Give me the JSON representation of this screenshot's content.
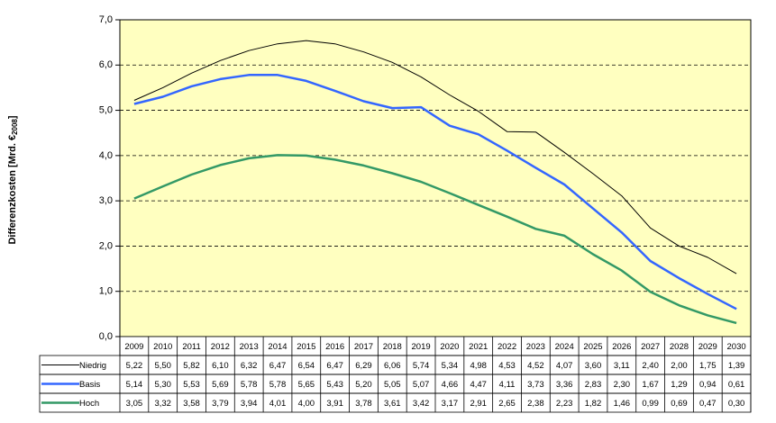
{
  "chart_data": {
    "type": "line",
    "ylabel": "Differenzkosten [Mrd. €",
    "ylabel_sub": "2008",
    "ylabel_end": "]",
    "categories": [
      "2009",
      "2010",
      "2011",
      "2012",
      "2013",
      "2014",
      "2015",
      "2016",
      "2017",
      "2018",
      "2019",
      "2020",
      "2021",
      "2022",
      "2023",
      "2024",
      "2025",
      "2026",
      "2027",
      "2028",
      "2029",
      "2030"
    ],
    "series": [
      {
        "name": "Niedrig",
        "color": "#000000",
        "width": 1,
        "values": [
          5.22,
          5.5,
          5.82,
          6.1,
          6.32,
          6.47,
          6.54,
          6.47,
          6.29,
          6.06,
          5.74,
          5.34,
          4.98,
          4.53,
          4.52,
          4.07,
          3.6,
          3.11,
          2.4,
          2.0,
          1.75,
          1.39
        ],
        "value_labels": [
          "5,22",
          "5,50",
          "5,82",
          "6,10",
          "6,32",
          "6,47",
          "6,54",
          "6,47",
          "6,29",
          "6,06",
          "5,74",
          "5,34",
          "4,98",
          "4,53",
          "4,52",
          "4,07",
          "3,60",
          "3,11",
          "2,40",
          "2,00",
          "1,75",
          "1,39"
        ]
      },
      {
        "name": "Basis",
        "color": "#3366ff",
        "width": 2.5,
        "values": [
          5.14,
          5.3,
          5.53,
          5.69,
          5.78,
          5.78,
          5.65,
          5.43,
          5.2,
          5.05,
          5.07,
          4.66,
          4.47,
          4.11,
          3.73,
          3.36,
          2.83,
          2.3,
          1.67,
          1.29,
          0.94,
          0.61
        ],
        "value_labels": [
          "5,14",
          "5,30",
          "5,53",
          "5,69",
          "5,78",
          "5,78",
          "5,65",
          "5,43",
          "5,20",
          "5,05",
          "5,07",
          "4,66",
          "4,47",
          "4,11",
          "3,73",
          "3,36",
          "2,83",
          "2,30",
          "1,67",
          "1,29",
          "0,94",
          "0,61"
        ]
      },
      {
        "name": "Hoch",
        "color": "#339966",
        "width": 2.5,
        "values": [
          3.05,
          3.32,
          3.58,
          3.79,
          3.94,
          4.01,
          4.0,
          3.91,
          3.78,
          3.61,
          3.42,
          3.17,
          2.91,
          2.65,
          2.38,
          2.23,
          1.82,
          1.46,
          0.99,
          0.69,
          0.47,
          0.3
        ],
        "value_labels": [
          "3,05",
          "3,32",
          "3,58",
          "3,79",
          "3,94",
          "4,01",
          "4,00",
          "3,91",
          "3,78",
          "3,61",
          "3,42",
          "3,17",
          "2,91",
          "2,65",
          "2,38",
          "2,23",
          "1,82",
          "1,46",
          "0,99",
          "0,69",
          "0,47",
          "0,30"
        ]
      }
    ],
    "ylim": [
      0,
      7
    ],
    "yticks": [
      {
        "value": 0,
        "label": "0,0"
      },
      {
        "value": 1,
        "label": "1,0"
      },
      {
        "value": 2,
        "label": "2,0"
      },
      {
        "value": 3,
        "label": "3,0"
      },
      {
        "value": 4,
        "label": "4,0"
      },
      {
        "value": 5,
        "label": "5,0"
      },
      {
        "value": 6,
        "label": "6,0"
      },
      {
        "value": 7,
        "label": "7,0"
      }
    ],
    "grid": true,
    "plot_background": "#ffffc0"
  }
}
